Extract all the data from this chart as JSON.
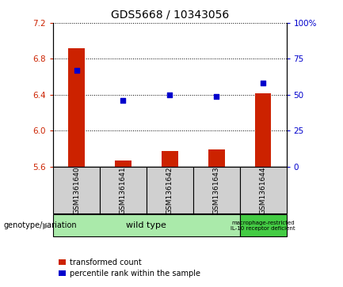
{
  "title": "GDS5668 / 10343056",
  "samples": [
    "GSM1361640",
    "GSM1361641",
    "GSM1361642",
    "GSM1361643",
    "GSM1361644"
  ],
  "bar_values": [
    6.92,
    5.67,
    5.77,
    5.79,
    6.42
  ],
  "percentile_values": [
    67,
    46,
    50,
    49,
    58
  ],
  "ylim_left": [
    5.6,
    7.2
  ],
  "ylim_right": [
    0,
    100
  ],
  "yticks_left": [
    5.6,
    6.0,
    6.4,
    6.8,
    7.2
  ],
  "yticks_right": [
    0,
    25,
    50,
    75,
    100
  ],
  "bar_color": "#cc2200",
  "dot_color": "#0000cc",
  "bar_bottom": 5.6,
  "wt_color": "#aaeaaa",
  "mac_color": "#44cc44",
  "sample_box_color": "#d0d0d0",
  "title_fontsize": 10
}
